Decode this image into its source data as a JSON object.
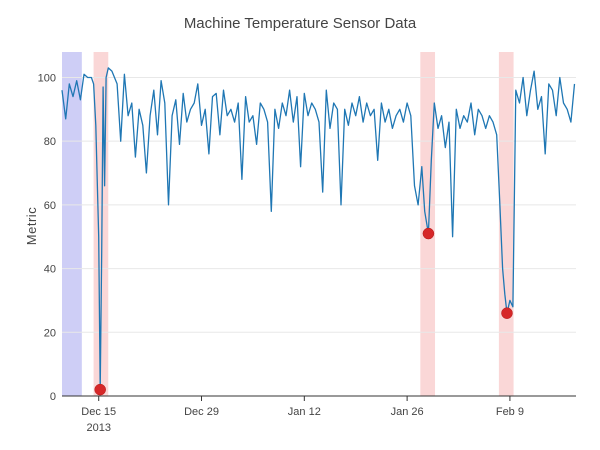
{
  "chart_data": {
    "type": "line",
    "title": "Machine Temperature Sensor Data",
    "xlabel": "",
    "ylabel": "Metric",
    "xlim": [
      "2013-12-10",
      "2014-02-18"
    ],
    "ylim": [
      0,
      108
    ],
    "y_ticks": [
      0,
      20,
      40,
      60,
      80,
      100
    ],
    "x_ticks": [
      {
        "date": "2013-12-15",
        "label": "Dec 15",
        "sublabel": "2013"
      },
      {
        "date": "2013-12-29",
        "label": "Dec 29",
        "sublabel": ""
      },
      {
        "date": "2014-01-12",
        "label": "Jan 12",
        "sublabel": ""
      },
      {
        "date": "2014-01-26",
        "label": "Jan 26",
        "sublabel": ""
      },
      {
        "date": "2014-02-09",
        "label": "Feb 9",
        "sublabel": ""
      }
    ],
    "grid": true,
    "legend": "none",
    "colors": {
      "line": "#1f77b4",
      "anomaly_point": "#d62728",
      "train_window": "#c9c9f5",
      "anomaly_window": "#f9d3d3"
    },
    "shaded_regions": [
      {
        "kind": "train-window",
        "start": "2013-12-10",
        "end": "2013-12-12.7"
      },
      {
        "kind": "anomaly-window",
        "start": "2013-12-14.3",
        "end": "2013-12-16.3"
      },
      {
        "kind": "anomaly-window",
        "start": "2014-01-27.8",
        "end": "2014-01-29.8"
      },
      {
        "kind": "anomaly-window",
        "start": "2014-02-07.5",
        "end": "2014-02-09.5"
      }
    ],
    "anomaly_points": [
      {
        "date": "2013-12-15.2",
        "value": 2
      },
      {
        "date": "2014-01-28.9",
        "value": 51
      },
      {
        "date": "2014-02-08.6",
        "value": 26
      }
    ],
    "series": [
      {
        "x": [
          "2013-12-10",
          "2013-12-10.5",
          "2013-12-11",
          "2013-12-11.5",
          "2013-12-12",
          "2013-12-12.5",
          "2013-12-13",
          "2013-12-13.5",
          "2013-12-14",
          "2013-12-14.3",
          "2013-12-14.6",
          "2013-12-15",
          "2013-12-15.2",
          "2013-12-15.4",
          "2013-12-15.6",
          "2013-12-15.8",
          "2013-12-16",
          "2013-12-16.3",
          "2013-12-16.8",
          "2013-12-17.5",
          "2013-12-18",
          "2013-12-18.5",
          "2013-12-19",
          "2013-12-19.5",
          "2013-12-20",
          "2013-12-20.5",
          "2013-12-21",
          "2013-12-21.5",
          "2013-12-22",
          "2013-12-22.5",
          "2013-12-23",
          "2013-12-23.5",
          "2013-12-24",
          "2013-12-24.5",
          "2013-12-25",
          "2013-12-25.5",
          "2013-12-26",
          "2013-12-26.5",
          "2013-12-27",
          "2013-12-27.5",
          "2013-12-28",
          "2013-12-28.5",
          "2013-12-29",
          "2013-12-29.5",
          "2013-12-30",
          "2013-12-30.5",
          "2013-12-31",
          "2013-12-31.5",
          "2014-01-01",
          "2014-01-01.5",
          "2014-01-02",
          "2014-01-02.5",
          "2014-01-03",
          "2014-01-03.5",
          "2014-01-04",
          "2014-01-04.5",
          "2014-01-05",
          "2014-01-05.5",
          "2014-01-06",
          "2014-01-06.5",
          "2014-01-07",
          "2014-01-07.5",
          "2014-01-08",
          "2014-01-08.5",
          "2014-01-09",
          "2014-01-09.5",
          "2014-01-10",
          "2014-01-10.5",
          "2014-01-11",
          "2014-01-11.5",
          "2014-01-12",
          "2014-01-12.5",
          "2014-01-13",
          "2014-01-13.5",
          "2014-01-14",
          "2014-01-14.5",
          "2014-01-15",
          "2014-01-15.5",
          "2014-01-16",
          "2014-01-16.5",
          "2014-01-17",
          "2014-01-17.5",
          "2014-01-18",
          "2014-01-18.5",
          "2014-01-19",
          "2014-01-19.5",
          "2014-01-20",
          "2014-01-20.5",
          "2014-01-21",
          "2014-01-21.5",
          "2014-01-22",
          "2014-01-22.5",
          "2014-01-23",
          "2014-01-23.5",
          "2014-01-24",
          "2014-01-24.5",
          "2014-01-25",
          "2014-01-25.5",
          "2014-01-26",
          "2014-01-26.5",
          "2014-01-27",
          "2014-01-27.5",
          "2014-01-28",
          "2014-01-28.4",
          "2014-01-28.9",
          "2014-01-29.3",
          "2014-01-29.7",
          "2014-01-30.2",
          "2014-01-30.7",
          "2014-01-31.2",
          "2014-01-31.7",
          "2014-02-01.2",
          "2014-02-01.7",
          "2014-02-02.2",
          "2014-02-02.7",
          "2014-02-03.2",
          "2014-02-03.7",
          "2014-02-04.2",
          "2014-02-04.7",
          "2014-02-05.2",
          "2014-02-05.7",
          "2014-02-06.2",
          "2014-02-06.7",
          "2014-02-07.2",
          "2014-02-07.6",
          "2014-02-08",
          "2014-02-08.3",
          "2014-02-08.6",
          "2014-02-09",
          "2014-02-09.4",
          "2014-02-09.8",
          "2014-02-10.3",
          "2014-02-10.8",
          "2014-02-11.3",
          "2014-02-11.8",
          "2014-02-12.3",
          "2014-02-12.8",
          "2014-02-13.3",
          "2014-02-13.8",
          "2014-02-14.3",
          "2014-02-14.8",
          "2014-02-15.3",
          "2014-02-15.8",
          "2014-02-16.3",
          "2014-02-16.8",
          "2014-02-17.3",
          "2014-02-17.8"
        ],
        "y": [
          96,
          87,
          98,
          94,
          99,
          93,
          101,
          100,
          100,
          98,
          85,
          50,
          2,
          45,
          97,
          66,
          100,
          103,
          102,
          98,
          80,
          101,
          88,
          92,
          75,
          90,
          85,
          70,
          88,
          96,
          82,
          99,
          92,
          60,
          88,
          93,
          79,
          95,
          86,
          90,
          92,
          98,
          85,
          90,
          76,
          94,
          95,
          82,
          96,
          88,
          90,
          86,
          92,
          68,
          94,
          86,
          88,
          79,
          92,
          90,
          86,
          58,
          90,
          84,
          92,
          88,
          96,
          86,
          94,
          72,
          95,
          88,
          92,
          90,
          86,
          64,
          96,
          84,
          92,
          90,
          60,
          90,
          85,
          92,
          88,
          94,
          86,
          92,
          88,
          90,
          74,
          92,
          86,
          90,
          84,
          88,
          90,
          86,
          92,
          88,
          66,
          60,
          72,
          58,
          51,
          74,
          92,
          84,
          88,
          78,
          86,
          50,
          90,
          84,
          88,
          86,
          92,
          82,
          90,
          88,
          84,
          88,
          86,
          82,
          62,
          40,
          32,
          26,
          30,
          28,
          96,
          92,
          100,
          88,
          96,
          102,
          90,
          94,
          76,
          98,
          96,
          88,
          100,
          92,
          90,
          86,
          98
        ]
      }
    ]
  }
}
